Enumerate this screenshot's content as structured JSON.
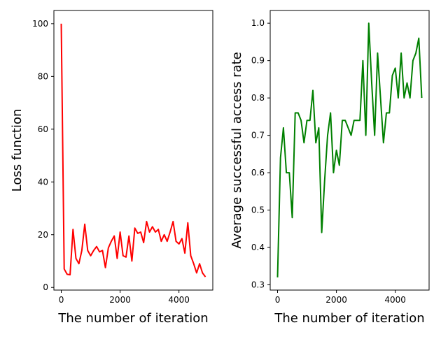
{
  "chart_data": [
    {
      "type": "line",
      "xlabel": "The number of iteration",
      "ylabel": "Loss function",
      "xlim": [
        -250,
        5150
      ],
      "ylim": [
        -1,
        105
      ],
      "xticks": [
        0,
        2000,
        4000
      ],
      "yticks": [
        0,
        20,
        40,
        60,
        80,
        100
      ],
      "grid": false,
      "series": [
        {
          "color": "#ff0000",
          "x": [
            0,
            100,
            200,
            300,
            400,
            500,
            600,
            700,
            800,
            900,
            1000,
            1100,
            1200,
            1300,
            1400,
            1500,
            1600,
            1700,
            1800,
            1900,
            2000,
            2100,
            2200,
            2300,
            2400,
            2500,
            2600,
            2700,
            2800,
            2900,
            3000,
            3100,
            3200,
            3300,
            3400,
            3500,
            3600,
            3700,
            3800,
            3900,
            4000,
            4100,
            4200,
            4300,
            4400,
            4500,
            4600,
            4700,
            4800,
            4900
          ],
          "y": [
            100,
            7,
            5,
            4.8,
            22,
            11,
            9,
            14,
            24,
            14,
            12,
            14,
            15.5,
            13.5,
            14,
            7.5,
            15,
            17.5,
            19.5,
            11,
            21,
            12,
            11.5,
            19.5,
            10,
            22.5,
            20.5,
            21,
            17,
            25,
            21,
            23,
            21,
            22,
            17.5,
            20,
            17.5,
            21,
            25,
            17.5,
            16.5,
            18.5,
            13,
            24.5,
            12,
            9,
            5.5,
            9,
            5.5,
            4
          ]
        }
      ]
    },
    {
      "type": "line",
      "xlabel": "The number of iteration",
      "ylabel": "Average successful access rate",
      "xlim": [
        -250,
        5150
      ],
      "ylim": [
        0.286,
        1.034
      ],
      "xticks": [
        0,
        2000,
        4000
      ],
      "yticks": [
        0.3,
        0.4,
        0.5,
        0.6,
        0.7,
        0.8,
        0.9,
        1.0
      ],
      "ytick_labels": [
        "0.3",
        "0.4",
        "0.5",
        "0.6",
        "0.7",
        "0.8",
        "0.9",
        "1.0"
      ],
      "grid": false,
      "series": [
        {
          "color": "#008000",
          "x": [
            0,
            100,
            200,
            300,
            400,
            500,
            600,
            700,
            800,
            900,
            1000,
            1100,
            1200,
            1300,
            1400,
            1500,
            1600,
            1700,
            1800,
            1900,
            2000,
            2100,
            2200,
            2300,
            2400,
            2500,
            2600,
            2700,
            2800,
            2900,
            3000,
            3100,
            3200,
            3300,
            3400,
            3500,
            3600,
            3700,
            3800,
            3900,
            4000,
            4100,
            4200,
            4300,
            4400,
            4500,
            4600,
            4700,
            4800,
            4900
          ],
          "y": [
            0.32,
            0.64,
            0.72,
            0.6,
            0.6,
            0.48,
            0.76,
            0.76,
            0.74,
            0.68,
            0.74,
            0.74,
            0.82,
            0.68,
            0.72,
            0.44,
            0.58,
            0.7,
            0.76,
            0.6,
            0.66,
            0.62,
            0.74,
            0.74,
            0.72,
            0.7,
            0.74,
            0.74,
            0.74,
            0.9,
            0.7,
            1.0,
            0.84,
            0.7,
            0.92,
            0.8,
            0.68,
            0.76,
            0.76,
            0.86,
            0.88,
            0.8,
            0.92,
            0.8,
            0.84,
            0.8,
            0.9,
            0.92,
            0.96,
            0.8
          ]
        }
      ]
    }
  ]
}
